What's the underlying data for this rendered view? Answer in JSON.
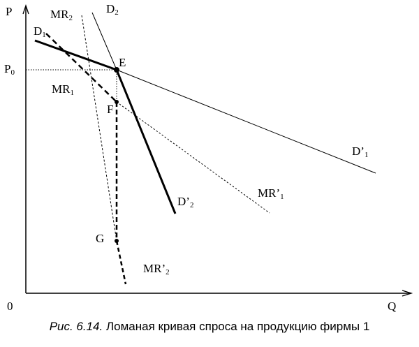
{
  "axes": {
    "y_label": "P",
    "x_label": "Q",
    "origin_label": "0",
    "price_label_main": "P",
    "price_label_sub": "0"
  },
  "curves": {
    "d1": {
      "main": "D",
      "sub": "1"
    },
    "d2": {
      "main": "D",
      "sub": "2"
    },
    "d1p": {
      "main": "D’",
      "sub": "1"
    },
    "d2p": {
      "main": "D’",
      "sub": "2"
    },
    "mr1": {
      "main": "MR",
      "sub": "1"
    },
    "mr2": {
      "main": "MR",
      "sub": "2"
    },
    "mr1p": {
      "main": "MR’",
      "sub": "1"
    },
    "mr2p": {
      "main": "MR’",
      "sub": "2"
    }
  },
  "points": {
    "e": "E",
    "f": "F",
    "g": "G"
  },
  "caption": {
    "prefix": "Рис. 6.14.",
    "text": " Ломаная кривая спроса на продукцию фирмы 1"
  }
}
